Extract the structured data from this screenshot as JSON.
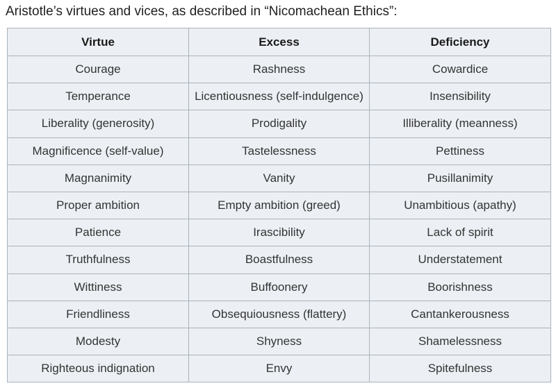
{
  "caption": "Aristotle’s virtues and vices, as described in “Nicomachean Ethics”:",
  "table": {
    "headers": [
      "Virtue",
      "Excess",
      "Deficiency"
    ],
    "rows": [
      [
        "Courage",
        "Rashness",
        "Cowardice"
      ],
      [
        "Temperance",
        "Licentiousness (self-indulgence)",
        "Insensibility"
      ],
      [
        "Liberality (generosity)",
        "Prodigality",
        "Illiberality (meanness)"
      ],
      [
        "Magnificence (self-value)",
        "Tastelessness",
        "Pettiness"
      ],
      [
        "Magnanimity",
        "Vanity",
        "Pusillanimity"
      ],
      [
        "Proper ambition",
        "Empty ambition (greed)",
        "Unambitious (apathy)"
      ],
      [
        "Patience",
        "Irascibility",
        "Lack of spirit"
      ],
      [
        "Truthfulness",
        "Boastfulness",
        "Understatement"
      ],
      [
        "Wittiness",
        "Buffoonery",
        "Boorishness"
      ],
      [
        "Friendliness",
        "Obsequiousness (flattery)",
        "Cantankerousness"
      ],
      [
        "Modesty",
        "Shyness",
        "Shamelessness"
      ],
      [
        "Righteous indignation",
        "Envy",
        "Spitefulness"
      ]
    ]
  }
}
